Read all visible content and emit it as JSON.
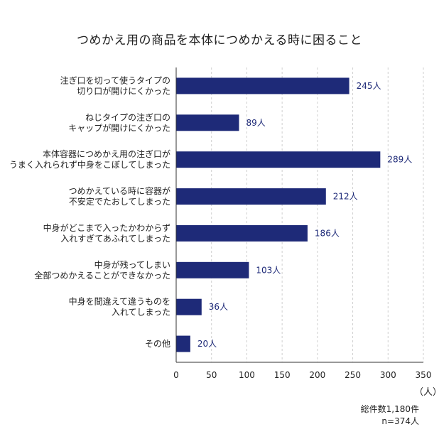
{
  "chart_data": {
    "type": "bar",
    "orientation": "horizontal",
    "title": "つめかえ用の商品を本体につめかえる時に困ること",
    "categories": [
      [
        "注ぎ口を切って使うタイプの",
        "切り口が開けにくかった"
      ],
      [
        "ねじタイプの注ぎ口の",
        "キャップが開けにくかった"
      ],
      [
        "本体容器につめかえ用の注ぎ口が",
        "うまく入れられず中身をこぼしてしまった"
      ],
      [
        "つめかえている時に容器が",
        "不安定でたおしてしまった"
      ],
      [
        "中身がどこまで入ったかわからず",
        "入れすぎてあふれてしまった"
      ],
      [
        "中身が残ってしまい",
        "全部つめかえることができなかった"
      ],
      [
        "中身を間違えて違うものを",
        "入れてしまった"
      ],
      [
        "その他"
      ]
    ],
    "values": [
      245,
      89,
      289,
      212,
      186,
      103,
      36,
      20
    ],
    "value_labels": [
      "245人",
      "89人",
      "289人",
      "212人",
      "186人",
      "103人",
      "36人",
      "20人"
    ],
    "xlim": [
      0,
      350
    ],
    "xticks": [
      0,
      50,
      100,
      150,
      200,
      250,
      300,
      350
    ],
    "xunit": "（人）",
    "grid": "vertical dashed",
    "bar_color": "#1e2a78",
    "note_lines": [
      "総件数1,180件",
      "n=374人"
    ]
  }
}
